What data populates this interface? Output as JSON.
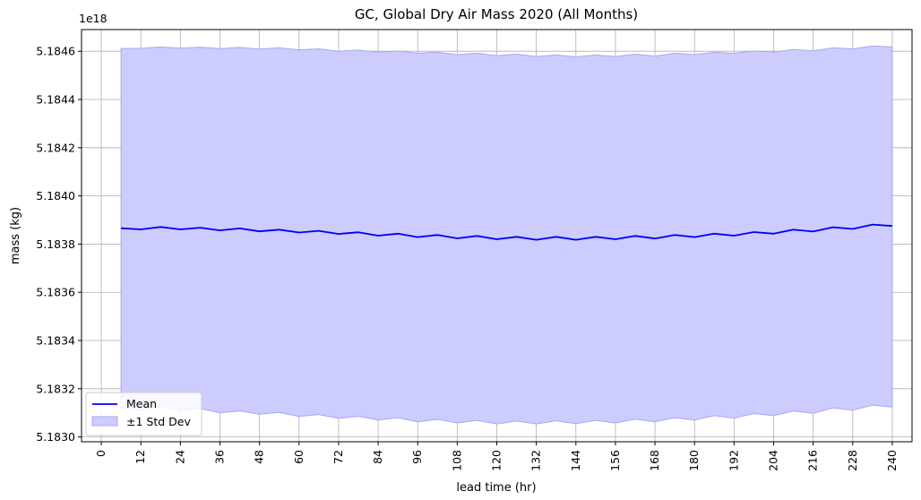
{
  "chart_data": {
    "type": "line",
    "title": "GC, Global Dry Air Mass 2020 (All Months)",
    "xlabel": "lead time (hr)",
    "ylabel": "mass (kg)",
    "offset_label": "1e18",
    "xlim": [
      -6,
      246
    ],
    "ylim": [
      5.18298,
      5.18469
    ],
    "xticks": [
      "0",
      "12",
      "24",
      "36",
      "48",
      "60",
      "72",
      "84",
      "96",
      "108",
      "120",
      "132",
      "144",
      "156",
      "168",
      "180",
      "192",
      "204",
      "216",
      "228",
      "240"
    ],
    "yticks": [
      "5.1830",
      "5.1832",
      "5.1834",
      "5.1836",
      "5.1838",
      "5.1840",
      "5.1842",
      "5.1844",
      "5.1846"
    ],
    "grid": true,
    "legend_position": "lower-left",
    "colors": {
      "mean_line": "#0000ee",
      "band_fill": "#ccccff",
      "band_edge": "#a8a8f0",
      "grid": "#b0b0b0"
    },
    "x": [
      6,
      12,
      18,
      24,
      30,
      36,
      42,
      48,
      54,
      60,
      66,
      72,
      78,
      84,
      90,
      96,
      102,
      108,
      114,
      120,
      126,
      132,
      138,
      144,
      150,
      156,
      162,
      168,
      174,
      180,
      186,
      192,
      198,
      204,
      210,
      216,
      222,
      228,
      234,
      240
    ],
    "series": [
      {
        "name": "Mean",
        "style": "line",
        "values": [
          5.183866,
          5.183861,
          5.183871,
          5.183861,
          5.183868,
          5.183857,
          5.183865,
          5.183853,
          5.18386,
          5.183848,
          5.183855,
          5.183842,
          5.183849,
          5.183835,
          5.183843,
          5.183829,
          5.183838,
          5.183824,
          5.183834,
          5.18382,
          5.18383,
          5.183818,
          5.18383,
          5.183818,
          5.18383,
          5.18382,
          5.183834,
          5.183823,
          5.183838,
          5.183829,
          5.183843,
          5.183835,
          5.18385,
          5.183843,
          5.18386,
          5.183852,
          5.18387,
          5.183863,
          5.183881,
          5.183875
        ]
      },
      {
        "name": "±1 Std Dev",
        "style": "band",
        "upper": [
          5.184612,
          5.184612,
          5.184618,
          5.184613,
          5.184617,
          5.184611,
          5.184616,
          5.184609,
          5.184614,
          5.184606,
          5.18461,
          5.1846,
          5.184605,
          5.184596,
          5.184601,
          5.184592,
          5.184596,
          5.184586,
          5.184592,
          5.184582,
          5.184588,
          5.184578,
          5.184585,
          5.184577,
          5.184585,
          5.184578,
          5.184588,
          5.18458,
          5.184592,
          5.184586,
          5.184596,
          5.184591,
          5.184601,
          5.184597,
          5.184607,
          5.184602,
          5.184614,
          5.18461,
          5.184622,
          5.184618
        ],
        "lower": [
          5.18312,
          5.18311,
          5.183124,
          5.183109,
          5.183118,
          5.1831,
          5.183108,
          5.183094,
          5.183102,
          5.183085,
          5.183093,
          5.183077,
          5.183086,
          5.18307,
          5.18308,
          5.183063,
          5.183073,
          5.183058,
          5.183069,
          5.183054,
          5.183066,
          5.183054,
          5.183067,
          5.183055,
          5.183069,
          5.183058,
          5.183074,
          5.183063,
          5.18308,
          5.18307,
          5.183088,
          5.183078,
          5.183097,
          5.183088,
          5.183108,
          5.183098,
          5.18312,
          5.183111,
          5.183132,
          5.183124
        ]
      }
    ]
  }
}
